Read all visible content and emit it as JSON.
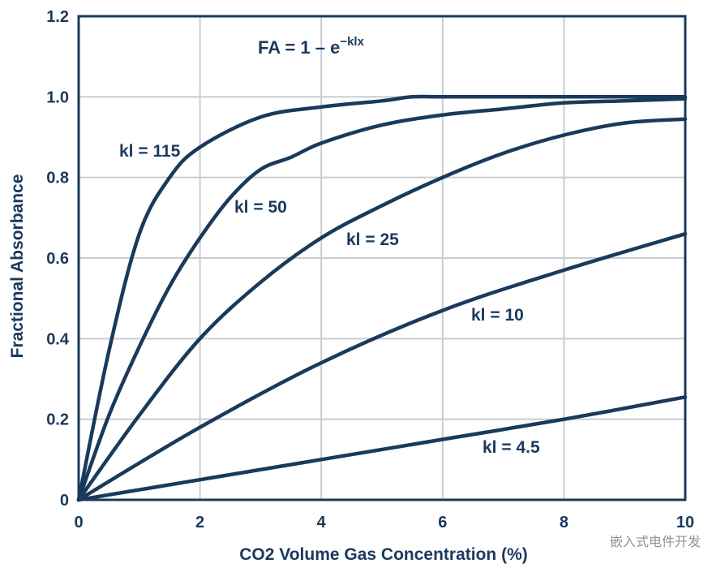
{
  "chart_data": {
    "type": "line",
    "title": "",
    "xlabel": "CO2 Volume Gas Concentration (%)",
    "ylabel": "Fractional Absorbance",
    "xlim": [
      0,
      10
    ],
    "ylim": [
      0,
      1.2
    ],
    "xticks": [
      0,
      2,
      4,
      6,
      8,
      10
    ],
    "xtick_labels": [
      "0",
      "2",
      "4",
      "6",
      "8",
      "10"
    ],
    "yticks": [
      0,
      0.2,
      0.4,
      0.6,
      0.8,
      1.0,
      1.2
    ],
    "ytick_labels": [
      "0",
      "0.2",
      "0.4",
      "0.6",
      "0.8",
      "1.0",
      "1.2"
    ],
    "grid": true,
    "line_color": "#1a3a5c",
    "grid_color": "#c8ccd3",
    "formula": {
      "base": "FA = 1 – e",
      "exponent": "−klx"
    },
    "series": [
      {
        "name": "kl = 115",
        "x": [
          0,
          0.5,
          1,
          1.5,
          2,
          3,
          4,
          5,
          5.5,
          6,
          7,
          8,
          9,
          10
        ],
        "y": [
          0,
          0.37,
          0.66,
          0.8,
          0.875,
          0.95,
          0.975,
          0.99,
          1.0,
          1.0,
          1.0,
          1.0,
          1.0,
          1.0
        ]
      },
      {
        "name": "kl = 50",
        "x": [
          0,
          0.5,
          1,
          1.5,
          2,
          2.5,
          3,
          3.5,
          4,
          5,
          6,
          7,
          8,
          9,
          10
        ],
        "y": [
          0,
          0.21,
          0.38,
          0.53,
          0.65,
          0.75,
          0.82,
          0.85,
          0.885,
          0.93,
          0.955,
          0.97,
          0.985,
          0.99,
          0.995
        ]
      },
      {
        "name": "kl = 25",
        "x": [
          0,
          1,
          2,
          3,
          4,
          5,
          6,
          7,
          8,
          9,
          10
        ],
        "y": [
          0,
          0.21,
          0.4,
          0.54,
          0.65,
          0.73,
          0.8,
          0.86,
          0.905,
          0.935,
          0.945
        ]
      },
      {
        "name": "kl = 10",
        "x": [
          0,
          2,
          4,
          6,
          8,
          10
        ],
        "y": [
          0,
          0.18,
          0.34,
          0.47,
          0.57,
          0.66
        ]
      },
      {
        "name": "kl = 4.5",
        "x": [
          0,
          2,
          4,
          6,
          8,
          10
        ],
        "y": [
          0,
          0.05,
          0.1,
          0.15,
          0.2,
          0.255
        ]
      }
    ],
    "annotations": [
      {
        "text": "kl = 115",
        "series": 0
      },
      {
        "text": "kl = 50",
        "series": 1
      },
      {
        "text": "kl = 25",
        "series": 2
      },
      {
        "text": "kl = 10",
        "series": 3
      },
      {
        "text": "kl = 4.5",
        "series": 4
      }
    ]
  },
  "watermark": "嵌入式电件开发"
}
